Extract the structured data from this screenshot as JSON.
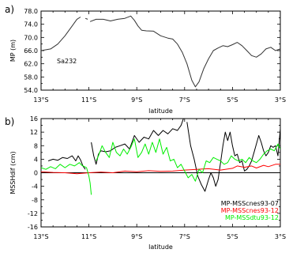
{
  "chart_data": [
    {
      "type": "line",
      "panel_label": "a)",
      "xlabel": "latitude",
      "ylabel": "MP (m)",
      "annotation": "Sa232",
      "xlim": [
        -13,
        -3
      ],
      "ylim": [
        54,
        78
      ],
      "x_ticks": [
        -13,
        -11,
        -9,
        -7,
        -5,
        -3
      ],
      "x_tick_labels": [
        "13°S",
        "11°S",
        "9°S",
        "7°S",
        "5°S",
        "3°S"
      ],
      "y_ticks": [
        54,
        58,
        62,
        66,
        70,
        74,
        78
      ],
      "y_tick_labels": [
        "54.0",
        "58.0",
        "62.0",
        "66.0",
        "70.0",
        "74.0",
        "78.0"
      ],
      "grid": false,
      "series": [
        {
          "color": "#333333",
          "segments": [
            [
              [
                -13.0,
                66.0
              ],
              [
                -12.6,
                66.5
              ],
              [
                -12.3,
                68.0
              ],
              [
                -12.0,
                70.5
              ],
              [
                -11.7,
                73.5
              ],
              [
                -11.5,
                75.5
              ],
              [
                -11.35,
                76.2
              ]
            ],
            [
              [
                -11.15,
                75.8
              ],
              [
                -11.05,
                75.5
              ]
            ],
            [
              [
                -10.95,
                74.8
              ],
              [
                -10.7,
                75.5
              ],
              [
                -10.4,
                75.5
              ],
              [
                -10.1,
                75.0
              ],
              [
                -9.8,
                75.5
              ],
              [
                -9.5,
                75.8
              ],
              [
                -9.25,
                76.5
              ],
              [
                -9.1,
                75.2
              ],
              [
                -8.95,
                73.5
              ],
              [
                -8.8,
                72.2
              ],
              [
                -8.6,
                72.0
              ],
              [
                -8.3,
                71.9
              ],
              [
                -8.0,
                70.5
              ],
              [
                -7.7,
                69.8
              ],
              [
                -7.5,
                69.5
              ],
              [
                -7.3,
                68.0
              ],
              [
                -7.1,
                65.5
              ],
              [
                -6.9,
                62.0
              ],
              [
                -6.7,
                57.0
              ],
              [
                -6.55,
                55.0
              ],
              [
                -6.4,
                56.5
              ],
              [
                -6.2,
                60.5
              ],
              [
                -6.0,
                63.5
              ],
              [
                -5.8,
                66.0
              ],
              [
                -5.6,
                66.8
              ],
              [
                -5.4,
                67.5
              ],
              [
                -5.2,
                67.2
              ],
              [
                -5.0,
                67.8
              ],
              [
                -4.8,
                68.5
              ],
              [
                -4.6,
                67.5
              ],
              [
                -4.4,
                66.0
              ],
              [
                -4.2,
                64.5
              ],
              [
                -4.0,
                64.0
              ],
              [
                -3.8,
                65.0
              ],
              [
                -3.6,
                66.5
              ],
              [
                -3.4,
                67.0
              ],
              [
                -3.2,
                66.0
              ],
              [
                -3.0,
                66.5
              ]
            ]
          ]
        }
      ]
    },
    {
      "type": "line",
      "panel_label": "b)",
      "xlabel": "latitude",
      "ylabel": "MSSHdif (cm)",
      "xlim": [
        -13,
        -3
      ],
      "ylim": [
        -16,
        16
      ],
      "x_ticks": [
        -13,
        -11,
        -9,
        -7,
        -5,
        -3
      ],
      "x_tick_labels": [
        "13°S",
        "11°S",
        "9°S",
        "7°S",
        "5°S",
        "3°S"
      ],
      "y_ticks": [
        -16,
        -12,
        -8,
        -4,
        0,
        4,
        8,
        12,
        16
      ],
      "y_tick_labels": [
        "-16",
        "-12",
        "-8",
        "-4",
        "0",
        "4",
        "8",
        "12",
        "16"
      ],
      "grid": false,
      "legend_position": "bottom-right",
      "series": [
        {
          "name": "MP-MSScnes93-07",
          "color": "#000000",
          "segments": [
            [
              [
                -12.7,
                3.5
              ],
              [
                -12.5,
                4.0
              ],
              [
                -12.3,
                3.7
              ],
              [
                -12.1,
                4.5
              ],
              [
                -11.9,
                4.2
              ],
              [
                -11.7,
                5.0
              ],
              [
                -11.55,
                3.5
              ],
              [
                -11.45,
                5.0
              ],
              [
                -11.35,
                3.8
              ],
              [
                -11.25,
                2.0
              ],
              [
                -11.15,
                1.0
              ]
            ],
            [
              [
                -10.9,
                9.0
              ],
              [
                -10.8,
                5.0
              ],
              [
                -10.7,
                2.5
              ],
              [
                -10.6,
                5.5
              ],
              [
                -10.5,
                6.5
              ],
              [
                -10.3,
                6.2
              ],
              [
                -10.1,
                6.5
              ],
              [
                -9.9,
                7.5
              ],
              [
                -9.7,
                8.0
              ],
              [
                -9.5,
                8.5
              ],
              [
                -9.3,
                7.0
              ],
              [
                -9.1,
                11.0
              ],
              [
                -8.9,
                9.0
              ],
              [
                -8.7,
                10.5
              ],
              [
                -8.5,
                10.0
              ],
              [
                -8.3,
                12.5
              ],
              [
                -8.1,
                11.0
              ],
              [
                -7.9,
                12.5
              ],
              [
                -7.7,
                11.5
              ],
              [
                -7.5,
                13.0
              ],
              [
                -7.3,
                12.5
              ],
              [
                -7.15,
                14.0
              ],
              [
                -7.05,
                16.0
              ]
            ],
            [
              [
                -6.9,
                15.0
              ],
              [
                -6.75,
                8.0
              ],
              [
                -6.6,
                4.0
              ],
              [
                -6.45,
                -1.0
              ],
              [
                -6.3,
                -3.5
              ],
              [
                -6.15,
                -5.5
              ],
              [
                -6.0,
                -2.0
              ],
              [
                -5.9,
                0.0
              ],
              [
                -5.8,
                -1.5
              ],
              [
                -5.7,
                -4.0
              ],
              [
                -5.6,
                -2.0
              ],
              [
                -5.5,
                3.0
              ],
              [
                -5.4,
                8.0
              ],
              [
                -5.3,
                12.0
              ],
              [
                -5.2,
                9.5
              ],
              [
                -5.1,
                12.0
              ],
              [
                -5.0,
                8.0
              ],
              [
                -4.9,
                5.0
              ],
              [
                -4.8,
                5.5
              ],
              [
                -4.7,
                3.0
              ],
              [
                -4.6,
                3.5
              ],
              [
                -4.5,
                0.5
              ],
              [
                -4.4,
                1.0
              ],
              [
                -4.3,
                2.0
              ],
              [
                -4.2,
                3.5
              ],
              [
                -4.1,
                6.0
              ],
              [
                -4.0,
                8.5
              ],
              [
                -3.9,
                11.0
              ],
              [
                -3.8,
                9.0
              ],
              [
                -3.7,
                6.5
              ],
              [
                -3.6,
                5.0
              ],
              [
                -3.5,
                6.0
              ],
              [
                -3.4,
                8.0
              ],
              [
                -3.3,
                7.5
              ],
              [
                -3.2,
                8.0
              ],
              [
                -3.1,
                5.0
              ],
              [
                -3.0,
                13.0
              ]
            ]
          ]
        },
        {
          "name": "MP-MSScnes93-12",
          "color": "#ff0000",
          "segments": [
            [
              [
                -13.0,
                0.3
              ],
              [
                -12.5,
                0.1
              ],
              [
                -12.0,
                0.0
              ],
              [
                -11.5,
                -0.3
              ],
              [
                -11.0,
                0.0
              ],
              [
                -10.5,
                0.2
              ],
              [
                -10.0,
                0.0
              ],
              [
                -9.5,
                0.5
              ],
              [
                -9.0,
                0.3
              ],
              [
                -8.5,
                0.6
              ],
              [
                -8.0,
                0.4
              ],
              [
                -7.5,
                0.5
              ],
              [
                -7.0,
                0.8
              ],
              [
                -6.5,
                1.0
              ],
              [
                -6.0,
                1.2
              ],
              [
                -5.5,
                0.8
              ],
              [
                -5.0,
                1.3
              ],
              [
                -4.8,
                2.0
              ],
              [
                -4.5,
                1.6
              ],
              [
                -4.2,
                2.0
              ],
              [
                -4.0,
                1.4
              ],
              [
                -3.7,
                2.2
              ],
              [
                -3.5,
                1.8
              ],
              [
                -3.2,
                2.5
              ],
              [
                -3.0,
                2.5
              ]
            ]
          ]
        },
        {
          "name": "MP-MSSdtu93-12",
          "color": "#00ee00",
          "segments": [
            [
              [
                -13.0,
                1.5
              ],
              [
                -12.8,
                1.0
              ],
              [
                -12.6,
                1.8
              ],
              [
                -12.4,
                1.2
              ],
              [
                -12.2,
                2.5
              ],
              [
                -12.0,
                1.5
              ],
              [
                -11.8,
                2.5
              ],
              [
                -11.6,
                2.0
              ],
              [
                -11.4,
                3.0
              ],
              [
                -11.3,
                2.2
              ],
              [
                -11.1,
                1.5
              ],
              [
                -11.0,
                -1.0
              ],
              [
                -10.95,
                -3.0
              ],
              [
                -10.9,
                -6.5
              ]
            ],
            [
              [
                -10.7,
                3.5
              ],
              [
                -10.6,
                5.0
              ],
              [
                -10.45,
                8.0
              ],
              [
                -10.3,
                6.0
              ],
              [
                -10.15,
                4.5
              ],
              [
                -10.0,
                9.0
              ],
              [
                -9.85,
                6.0
              ],
              [
                -9.7,
                5.0
              ],
              [
                -9.55,
                7.0
              ],
              [
                -9.4,
                5.5
              ],
              [
                -9.25,
                7.5
              ],
              [
                -9.1,
                10.0
              ],
              [
                -8.95,
                4.5
              ],
              [
                -8.8,
                6.0
              ],
              [
                -8.65,
                8.5
              ],
              [
                -8.5,
                5.5
              ],
              [
                -8.35,
                9.0
              ],
              [
                -8.2,
                6.0
              ],
              [
                -8.05,
                10.0
              ],
              [
                -7.9,
                5.5
              ],
              [
                -7.75,
                7.5
              ],
              [
                -7.6,
                3.5
              ],
              [
                -7.45,
                4.0
              ],
              [
                -7.3,
                1.5
              ],
              [
                -7.15,
                2.5
              ],
              [
                -7.0,
                0.5
              ],
              [
                -6.85,
                -1.5
              ],
              [
                -6.7,
                -0.5
              ],
              [
                -6.55,
                -2.5
              ],
              [
                -6.4,
                1.0
              ],
              [
                -6.25,
                0.0
              ],
              [
                -6.1,
                3.5
              ],
              [
                -5.95,
                3.0
              ],
              [
                -5.8,
                4.5
              ],
              [
                -5.65,
                4.0
              ],
              [
                -5.5,
                3.5
              ],
              [
                -5.35,
                2.5
              ],
              [
                -5.2,
                3.0
              ],
              [
                -5.05,
                5.0
              ],
              [
                -4.9,
                4.0
              ],
              [
                -4.75,
                3.5
              ],
              [
                -4.6,
                4.0
              ],
              [
                -4.45,
                3.0
              ],
              [
                -4.3,
                4.5
              ],
              [
                -4.15,
                3.5
              ],
              [
                -4.0,
                3.0
              ],
              [
                -3.85,
                4.0
              ],
              [
                -3.7,
                5.5
              ],
              [
                -3.55,
                6.5
              ],
              [
                -3.4,
                7.0
              ],
              [
                -3.25,
                6.5
              ],
              [
                -3.1,
                8.5
              ],
              [
                -3.0,
                7.0
              ]
            ]
          ]
        }
      ]
    }
  ]
}
